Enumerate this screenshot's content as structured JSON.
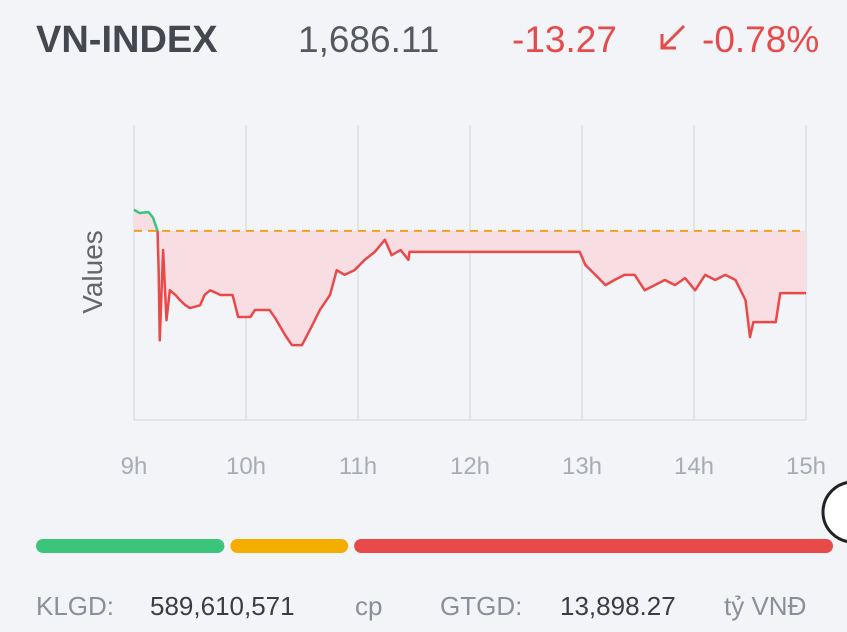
{
  "header": {
    "title": "VN-INDEX",
    "index_value": "1,686.11",
    "change": "-13.27",
    "change_percent": "-0.78%"
  },
  "chart_data": {
    "type": "line",
    "y_label": "Values",
    "xlim": [
      9,
      15
    ],
    "ylim": [
      1659,
      1722
    ],
    "xticks": [
      {
        "value": 9,
        "label": "9h"
      },
      {
        "value": 10,
        "label": "10h"
      },
      {
        "value": 11,
        "label": "11h"
      },
      {
        "value": 12,
        "label": "12h"
      },
      {
        "value": 13,
        "label": "13h"
      },
      {
        "value": 14,
        "label": "14h"
      },
      {
        "value": 15,
        "label": "15h"
      }
    ],
    "grid": true,
    "reference": 1699.38,
    "reference_color": "#f0a020",
    "area_color": "#f8dde2",
    "series": [
      {
        "color": "#e84a4a",
        "above_color": "#3cc47c",
        "x": [
          9.0,
          9.05,
          9.13,
          9.17,
          9.21,
          9.22,
          9.23,
          9.26,
          9.29,
          9.32,
          9.37,
          9.41,
          9.46,
          9.5,
          9.59,
          9.63,
          9.68,
          9.72,
          9.77,
          9.88,
          9.93,
          10.04,
          10.08,
          10.21,
          10.26,
          10.35,
          10.41,
          10.5,
          10.57,
          10.66,
          10.75,
          10.81,
          10.88,
          10.97,
          11.06,
          11.15,
          11.24,
          11.3,
          11.38,
          11.45,
          11.46,
          12.98,
          13.03,
          13.12,
          13.21,
          13.29,
          13.38,
          13.47,
          13.56,
          13.65,
          13.74,
          13.83,
          13.92,
          14.01,
          14.1,
          14.19,
          14.28,
          14.37,
          14.46,
          14.5,
          14.53,
          14.73,
          14.77,
          15.0
        ],
        "values": [
          1703.9,
          1703.2,
          1703.4,
          1702.2,
          1699.4,
          1691.0,
          1676.0,
          1695.3,
          1680.3,
          1686.7,
          1685.7,
          1684.6,
          1683.5,
          1682.9,
          1683.5,
          1685.7,
          1686.7,
          1686.3,
          1685.7,
          1685.7,
          1681.0,
          1681.0,
          1682.5,
          1682.5,
          1680.8,
          1677.1,
          1675.0,
          1675.0,
          1678.2,
          1682.5,
          1685.7,
          1691.0,
          1690.0,
          1691.0,
          1693.2,
          1694.9,
          1697.5,
          1694.2,
          1695.3,
          1693.2,
          1694.9,
          1694.9,
          1692.1,
          1690.0,
          1687.8,
          1688.9,
          1690.0,
          1690.0,
          1686.7,
          1687.8,
          1688.9,
          1687.8,
          1689.3,
          1686.7,
          1690.0,
          1688.9,
          1690.0,
          1688.9,
          1684.6,
          1676.7,
          1679.9,
          1679.9,
          1686.1,
          1686.1
        ]
      }
    ]
  },
  "market_breadth": {
    "values": [
      24,
      15,
      61
    ],
    "colors": [
      "#3cc47c",
      "#f5ae00",
      "#e84a4a"
    ]
  },
  "footer": {
    "volume_label": "KLGD:",
    "volume": "589,610,571",
    "volume_unit": "cp",
    "value_label": "GTGD:",
    "value": "13,898.27",
    "value_unit": "tỷ VNĐ"
  }
}
